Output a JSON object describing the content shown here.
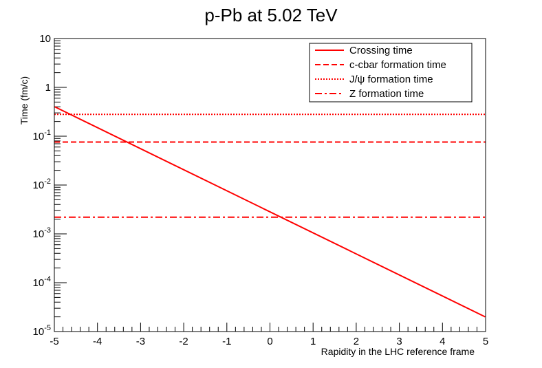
{
  "chart_data": {
    "type": "line",
    "title": "p-Pb at 5.02 TeV",
    "xlabel": "Rapidity in the LHC reference frame",
    "ylabel": "Time (fm/c)",
    "xlim": [
      -5,
      5
    ],
    "ylim": [
      1e-05,
      10
    ],
    "yscale": "log",
    "x_ticks": [
      "-5",
      "-4",
      "-3",
      "-2",
      "-1",
      "0",
      "1",
      "2",
      "3",
      "4",
      "5"
    ],
    "y_ticks": [
      {
        "value": 1e-05,
        "base": "10",
        "exp": "-5"
      },
      {
        "value": 0.0001,
        "base": "10",
        "exp": "-4"
      },
      {
        "value": 0.001,
        "base": "10",
        "exp": "-3"
      },
      {
        "value": 0.01,
        "base": "10",
        "exp": "-2"
      },
      {
        "value": 0.1,
        "base": "10",
        "exp": "-1"
      },
      {
        "value": 1,
        "base": "1",
        "exp": ""
      },
      {
        "value": 10,
        "base": "10",
        "exp": ""
      }
    ],
    "legend_position": "top-right",
    "color": "#ff0000",
    "series": [
      {
        "name": "Crossing time",
        "style": "solid",
        "x": [
          -4.99,
          4.99
        ],
        "y": [
          0.4,
          2e-05
        ]
      },
      {
        "name": "c-cbar formation time",
        "style": "dashed",
        "x": [
          -5,
          5
        ],
        "y": [
          0.076,
          0.076
        ]
      },
      {
        "name": "J/ψ formation time",
        "style": "dotted",
        "x": [
          -5,
          5
        ],
        "y": [
          0.28,
          0.28
        ]
      },
      {
        "name": "Z formation time",
        "style": "dashdot",
        "x": [
          -5,
          5
        ],
        "y": [
          0.0022,
          0.0022
        ]
      }
    ]
  }
}
